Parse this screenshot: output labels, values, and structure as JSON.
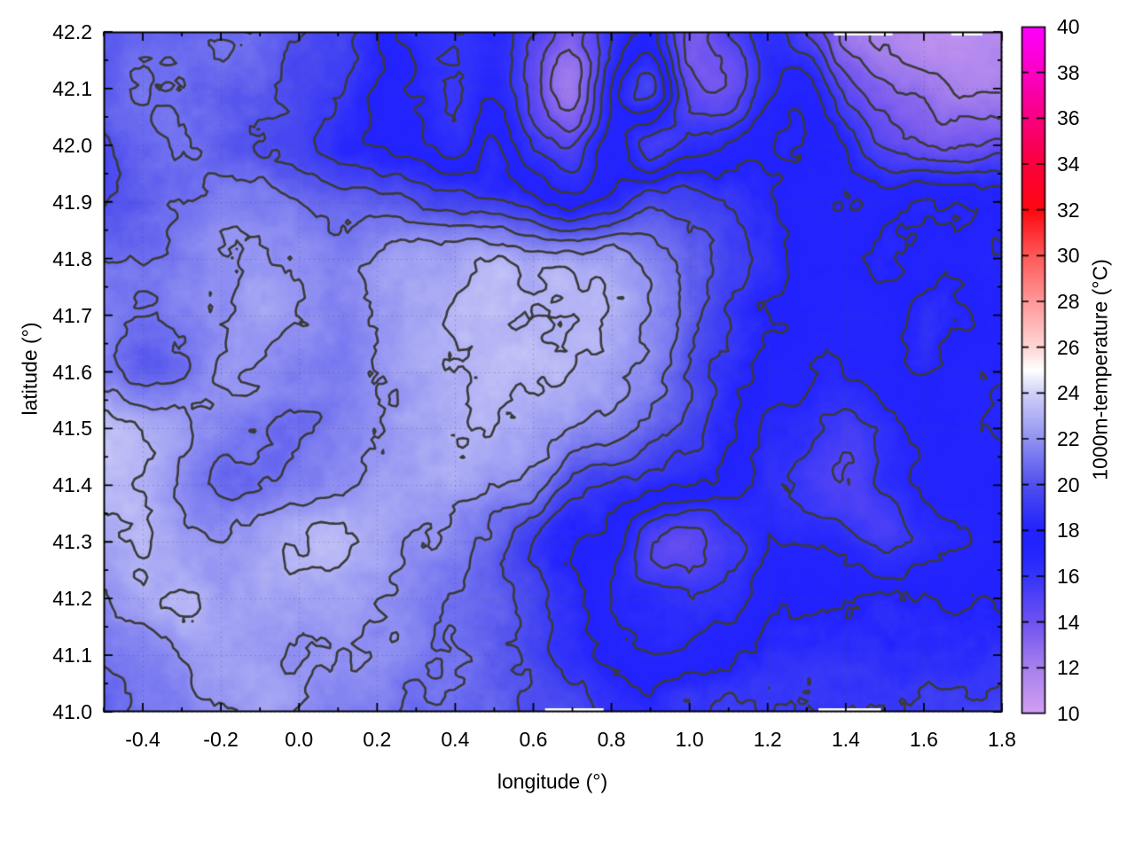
{
  "chart_data": {
    "type": "heatmap",
    "title": "",
    "xlabel": "longitude (°)",
    "ylabel": "latitude (°)",
    "colorbar_label": "1000m-temperature (°C)",
    "x_range": [
      -0.5,
      1.8
    ],
    "y_range": [
      41.0,
      42.2
    ],
    "cb_range": [
      10,
      40
    ],
    "x_tick_values": [
      -0.4,
      -0.2,
      0.0,
      0.2,
      0.4,
      0.6,
      0.8,
      1.0,
      1.2,
      1.4,
      1.6,
      1.8
    ],
    "x_tick_labels": [
      "-0.4",
      "-0.2",
      "0.0",
      "0.2",
      "0.4",
      "0.6",
      "0.8",
      "1.0",
      "1.2",
      "1.4",
      "1.6",
      "1.8"
    ],
    "x_minor_step": 0.1,
    "y_tick_values": [
      41.0,
      41.1,
      41.2,
      41.3,
      41.4,
      41.5,
      41.6,
      41.7,
      41.8,
      41.9,
      42.0,
      42.1,
      42.2
    ],
    "y_tick_labels": [
      "41.0",
      "41.1",
      "41.2",
      "41.3",
      "41.4",
      "41.5",
      "41.6",
      "41.7",
      "41.8",
      "41.9",
      "42.0",
      "42.1",
      "42.2"
    ],
    "y_minor_step": 0.05,
    "cb_tick_values": [
      10,
      12,
      14,
      16,
      18,
      20,
      22,
      24,
      26,
      28,
      30,
      32,
      34,
      36,
      38,
      40
    ],
    "cb_tick_labels": [
      "10",
      "12",
      "14",
      "16",
      "18",
      "20",
      "22",
      "24",
      "26",
      "28",
      "30",
      "32",
      "34",
      "36",
      "38",
      "40"
    ],
    "grid_lines": true,
    "grid_line_color": "#606060",
    "contour_color": "#3a3a3a",
    "contour_levels": [
      12,
      13,
      14,
      15,
      16,
      17,
      18,
      19,
      20,
      21,
      22,
      23
    ],
    "palette_stops": [
      [
        10,
        210,
        160,
        242
      ],
      [
        12,
        166,
        128,
        236
      ],
      [
        14,
        110,
        82,
        240
      ],
      [
        16,
        52,
        52,
        250
      ],
      [
        17,
        36,
        36,
        253
      ],
      [
        18,
        34,
        34,
        255
      ],
      [
        20,
        80,
        80,
        238
      ],
      [
        22,
        146,
        146,
        242
      ],
      [
        24,
        208,
        208,
        248
      ],
      [
        25,
        255,
        255,
        255
      ],
      [
        26,
        255,
        214,
        214
      ],
      [
        28,
        255,
        152,
        152
      ],
      [
        30,
        255,
        88,
        88
      ],
      [
        32,
        252,
        8,
        16
      ],
      [
        34,
        250,
        0,
        60
      ],
      [
        36,
        248,
        0,
        128
      ],
      [
        38,
        250,
        0,
        196
      ],
      [
        40,
        255,
        0,
        255
      ]
    ],
    "grid": {
      "lon_start": -0.5,
      "lon_step": 0.1,
      "cols": 24,
      "lat_start": 42.2,
      "lat_step": -0.1,
      "rows": 13,
      "values": [
        [
          20.5,
          20.5,
          20.5,
          21.0,
          20.5,
          20.0,
          19.5,
          18.0,
          16.5,
          16.0,
          16.5,
          15.0,
          13.5,
          16.0,
          17.0,
          13.5,
          15.0,
          16.5,
          15.0,
          12.5,
          11.5,
          11.0,
          11.0,
          11.5
        ],
        [
          20.5,
          21.0,
          21.0,
          20.5,
          20.5,
          19.5,
          19.0,
          18.0,
          17.0,
          16.0,
          17.0,
          14.5,
          12.5,
          17.0,
          19.5,
          14.5,
          14.0,
          16.5,
          17.5,
          14.5,
          13.0,
          12.5,
          12.0,
          12.0
        ],
        [
          20.0,
          20.5,
          21.0,
          20.5,
          20.0,
          19.5,
          18.5,
          18.0,
          17.5,
          16.5,
          18.0,
          16.0,
          15.0,
          17.5,
          15.5,
          16.5,
          17.0,
          18.0,
          18.0,
          17.0,
          15.0,
          14.0,
          14.0,
          14.5
        ],
        [
          20.0,
          20.5,
          21.0,
          21.5,
          21.5,
          21.0,
          20.5,
          20.5,
          20.0,
          19.5,
          19.0,
          18.5,
          17.5,
          18.5,
          19.5,
          19.5,
          19.0,
          18.0,
          17.5,
          17.0,
          17.5,
          18.0,
          18.0,
          17.5
        ],
        [
          21.0,
          21.0,
          21.5,
          22.0,
          22.0,
          22.0,
          21.5,
          22.0,
          22.5,
          22.5,
          23.0,
          22.5,
          22.5,
          22.5,
          21.5,
          20.5,
          19.5,
          18.5,
          17.5,
          17.5,
          18.0,
          17.5,
          17.5,
          17.0
        ],
        [
          21.5,
          21.0,
          21.5,
          22.0,
          22.5,
          22.0,
          21.5,
          22.0,
          22.5,
          23.0,
          23.2,
          23.0,
          23.0,
          23.0,
          22.0,
          20.5,
          19.0,
          18.0,
          17.5,
          17.0,
          17.5,
          18.5,
          18.0,
          17.5
        ],
        [
          21.5,
          20.5,
          21.0,
          22.0,
          22.0,
          21.5,
          21.5,
          22.0,
          22.5,
          23.0,
          23.2,
          23.2,
          23.0,
          22.5,
          21.5,
          20.0,
          18.5,
          17.5,
          17.0,
          17.0,
          17.5,
          18.0,
          17.5,
          17.0
        ],
        [
          23.5,
          23.0,
          22.5,
          21.5,
          21.0,
          21.0,
          21.5,
          22.0,
          22.5,
          23.0,
          23.0,
          22.5,
          22.0,
          21.5,
          20.5,
          19.5,
          18.0,
          17.0,
          16.5,
          15.5,
          16.5,
          17.5,
          17.5,
          17.0
        ],
        [
          23.5,
          23.0,
          22.0,
          21.0,
          21.0,
          21.5,
          22.0,
          22.5,
          22.5,
          22.5,
          22.0,
          21.5,
          19.5,
          19.0,
          18.5,
          18.0,
          17.5,
          16.5,
          15.5,
          15.0,
          16.0,
          17.0,
          17.5,
          17.5
        ],
        [
          22.5,
          23.0,
          22.5,
          22.0,
          22.5,
          23.0,
          23.2,
          22.5,
          22.0,
          21.5,
          20.5,
          19.0,
          18.0,
          17.5,
          15.0,
          14.5,
          15.5,
          17.0,
          17.0,
          16.5,
          15.5,
          16.5,
          17.0,
          17.5
        ],
        [
          22.0,
          22.5,
          23.0,
          22.5,
          22.5,
          22.5,
          22.5,
          22.0,
          21.5,
          21.0,
          20.5,
          19.5,
          18.5,
          17.0,
          16.5,
          16.0,
          16.5,
          17.5,
          18.0,
          18.0,
          18.0,
          18.0,
          18.0,
          18.0
        ],
        [
          21.0,
          21.5,
          22.0,
          22.5,
          22.5,
          22.0,
          22.0,
          22.0,
          21.5,
          21.0,
          20.5,
          19.5,
          18.5,
          17.5,
          17.0,
          17.5,
          18.0,
          18.5,
          18.5,
          18.5,
          18.5,
          18.5,
          18.5,
          18.5
        ],
        [
          20.5,
          21.0,
          21.5,
          22.0,
          22.5,
          22.0,
          21.5,
          21.5,
          21.0,
          21.0,
          20.5,
          20.0,
          19.5,
          18.5,
          18.5,
          19.0,
          19.0,
          19.0,
          19.0,
          19.0,
          19.0,
          19.2,
          19.3,
          19.5
        ]
      ]
    },
    "edge_gaps": {
      "bottom": [
        [
          0.63,
          0.78
        ],
        [
          1.33,
          1.49
        ]
      ],
      "top": [
        [
          1.37,
          1.52
        ],
        [
          1.67,
          1.75
        ]
      ]
    }
  }
}
